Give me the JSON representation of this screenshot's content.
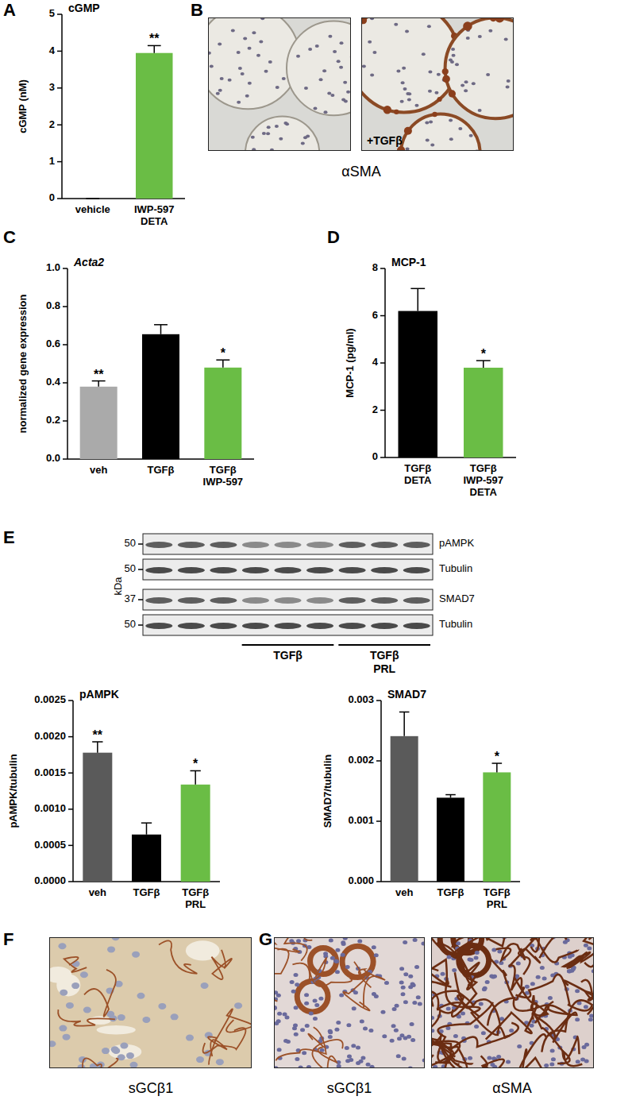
{
  "panel_labels": [
    "A",
    "B",
    "C",
    "D",
    "E",
    "F",
    "G"
  ],
  "chart_data": [
    {
      "type": "bar",
      "title": "cGMP",
      "y_label": "cGMP (nM)",
      "categories": [
        "vehicle",
        "IWP-597 DETA"
      ],
      "values": [
        0,
        3.95
      ],
      "errors": [
        0,
        0.2
      ],
      "significance": [
        null,
        "**"
      ],
      "colors": [
        "#aaaaaa",
        "#6abd45"
      ],
      "ylim": [
        0,
        5
      ],
      "yticks": [
        0,
        1,
        2,
        3,
        4,
        5
      ]
    },
    {
      "type": "bar",
      "title": "Acta2",
      "y_label": "normalized gene expression",
      "categories": [
        "veh",
        "TGFβ",
        "TGFβ IWP-597"
      ],
      "values": [
        0.38,
        0.655,
        0.48
      ],
      "errors": [
        0.03,
        0.05,
        0.04
      ],
      "significance": [
        "**",
        null,
        "*"
      ],
      "colors": [
        "#aaaaaa",
        "#000000",
        "#6abd45"
      ],
      "ylim": [
        0,
        1
      ],
      "yticks": [
        {
          "value": 0,
          "label": "0.0"
        },
        0.2,
        0.4,
        0.6,
        0.8,
        {
          "value": 1,
          "label": "1.0"
        }
      ]
    },
    {
      "type": "bar",
      "title": "MCP-1",
      "y_label": "MCP-1 (pg/ml)",
      "categories": [
        "TGFβ DETA",
        "TGFβ IWP-597 DETA"
      ],
      "values": [
        6.2,
        3.8
      ],
      "errors": [
        0.95,
        0.3
      ],
      "significance": [
        null,
        "*"
      ],
      "colors": [
        "#000000",
        "#6abd45"
      ],
      "ylim": [
        0,
        8
      ],
      "yticks": [
        0,
        2,
        4,
        6,
        8
      ]
    },
    {
      "type": "bar",
      "title": "pAMPK",
      "y_label": "pAMPK/tubulin",
      "categories": [
        "veh",
        "TGFβ",
        "TGFβ PRL"
      ],
      "values": [
        0.00178,
        0.00065,
        0.00134
      ],
      "errors": [
        0.00015,
        0.00016,
        0.00019
      ],
      "significance": [
        "**",
        null,
        "*"
      ],
      "colors": [
        "#5a5a5a",
        "#000000",
        "#6abd45"
      ],
      "ylim": [
        0,
        0.0025
      ],
      "yticks": [
        {
          "value": 0,
          "label": "0.0000"
        },
        0.0005,
        {
          "value": 0.001,
          "label": "0.0010"
        },
        0.0015,
        {
          "value": 0.002,
          "label": "0.0020"
        },
        0.0025
      ]
    },
    {
      "type": "bar",
      "title": "SMAD7",
      "y_label": "SMAD7/tubulin",
      "categories": [
        "veh",
        "TGFβ",
        "TGFβ PRL"
      ],
      "values": [
        0.00241,
        0.00139,
        0.00181
      ],
      "errors": [
        0.0004,
        5e-05,
        0.00015
      ],
      "significance": [
        null,
        null,
        "*"
      ],
      "colors": [
        "#5a5a5a",
        "#000000",
        "#6abd45"
      ],
      "ylim": [
        0,
        0.003
      ],
      "yticks": [
        {
          "value": 0,
          "label": "0.000"
        },
        0.001,
        0.002,
        0.003
      ]
    }
  ],
  "images": {
    "B": {
      "caption": "αSMA",
      "inset_label": "+TGFβ"
    },
    "F": {
      "caption": "sGCβ1"
    },
    "G": {
      "captions": [
        "sGCβ1",
        "αSMA"
      ]
    }
  },
  "blot": {
    "unit": "kDa",
    "rows": [
      {
        "label": "pAMPK",
        "marker": 50
      },
      {
        "label": "Tubulin",
        "marker": 50
      },
      {
        "label": "SMAD7",
        "marker": 37
      },
      {
        "label": "Tubulin",
        "marker": 50
      }
    ],
    "groups": [
      {
        "label": "TGFβ"
      },
      {
        "label": "TGFβ PRL"
      }
    ]
  }
}
